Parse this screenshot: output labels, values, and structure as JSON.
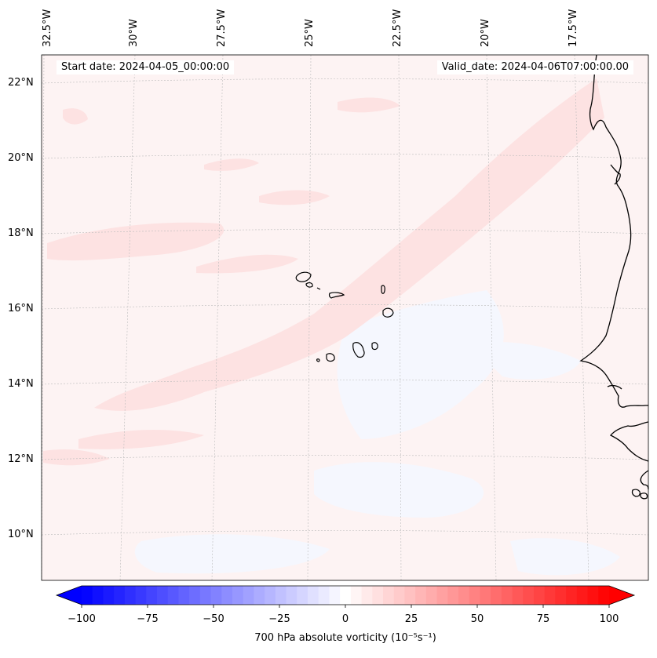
{
  "header": {
    "start_date": "Start date: 2024-04-05_00:00:00",
    "valid_date": "Valid_date: 2024-04-06T07:00:00.00"
  },
  "longitude_labels": [
    "32.5°W",
    "30°W",
    "27.5°W",
    "25°W",
    "22.5°W",
    "20°W",
    "17.5°W"
  ],
  "latitude_labels": [
    "22°N",
    "20°N",
    "18°N",
    "16°N",
    "14°N",
    "12°N",
    "10°N"
  ],
  "colorbar": {
    "label": "700 hPa absolute vorticity (10⁻⁵s⁻¹)",
    "tick_labels": [
      "−100",
      "−75",
      "−50",
      "−25",
      "0",
      "25",
      "50",
      "75",
      "100"
    ],
    "tick_values": [
      -100,
      -75,
      -50,
      -25,
      0,
      25,
      50,
      75,
      100
    ],
    "range": [
      -100,
      100
    ],
    "levels": 49,
    "extend": "both",
    "cmap_low": "#0000ff",
    "cmap_mid": "#ffffff",
    "cmap_high": "#ff0000"
  },
  "colors": {
    "coastline": "#000000",
    "gridline": "#bbbbbb",
    "weak_positive": "#fdf3f3",
    "moderate_positive": "#fde2e2",
    "weak_negative": "#f5f7fe"
  }
}
